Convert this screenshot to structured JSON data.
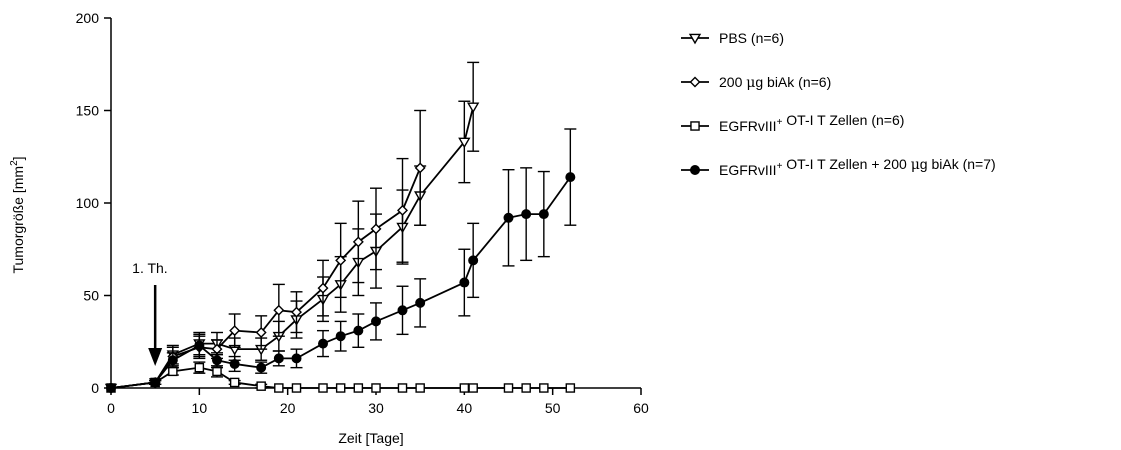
{
  "chart_data": {
    "type": "line",
    "title": "",
    "xlabel": "Zeit [Tage]",
    "ylabel": "Tumorgröße [mm",
    "ylabel_sup": "2",
    "ylabel_close": "]",
    "xlim": [
      0,
      60
    ],
    "ylim": [
      0,
      200
    ],
    "xticks": [
      0,
      10,
      20,
      30,
      40,
      50,
      60
    ],
    "yticks": [
      0,
      50,
      100,
      150,
      200
    ],
    "grid": false,
    "legend_position": "right",
    "annotation": {
      "text": "1. Th.",
      "x": 5
    },
    "series": [
      {
        "name": "PBS (n=6)",
        "label_parts": [
          {
            "t": "PBS (n=6)"
          }
        ],
        "marker": "triangle-down-open",
        "color": "#000000",
        "x": [
          0,
          5,
          7,
          10,
          12,
          14,
          17,
          19,
          21,
          24,
          26,
          28,
          30,
          33,
          35,
          40,
          41
        ],
        "y": [
          0,
          3,
          18,
          24,
          24,
          21,
          21,
          28,
          37,
          48,
          56,
          68,
          74,
          87,
          104,
          133,
          152
        ],
        "err": [
          0,
          1,
          5,
          6,
          6,
          6,
          6,
          8,
          10,
          12,
          15,
          18,
          20,
          20,
          16,
          22,
          24
        ]
      },
      {
        "name": "200 μg biAk (n=6)",
        "label_parts": [
          {
            "t": "200 "
          },
          {
            "t": "μ",
            "greek": true
          },
          {
            "t": "g biAk (n=6)"
          }
        ],
        "marker": "diamond-open",
        "color": "#000000",
        "x": [
          0,
          5,
          7,
          10,
          12,
          14,
          17,
          19,
          21,
          24,
          26,
          28,
          30,
          33,
          35
        ],
        "y": [
          0,
          3,
          17,
          22,
          21,
          31,
          30,
          42,
          41,
          54,
          69,
          79,
          86,
          96,
          119
        ],
        "err": [
          0,
          1,
          5,
          6,
          5,
          9,
          9,
          14,
          11,
          15,
          20,
          22,
          22,
          28,
          31
        ]
      },
      {
        "name": "EGFRvIII+ OT-I T Zellen (n=6)",
        "label_parts": [
          {
            "t": "EGFRvIII"
          },
          {
            "t": "+",
            "sup": true
          },
          {
            "t": " OT-I T Zellen (n=6)"
          }
        ],
        "marker": "square-open",
        "color": "#000000",
        "x": [
          0,
          5,
          7,
          10,
          12,
          14,
          17,
          19,
          21,
          24,
          26,
          28,
          30,
          33,
          35,
          40,
          41,
          45,
          47,
          49,
          52
        ],
        "y": [
          0,
          3,
          9,
          11,
          9,
          3,
          1,
          0,
          0,
          0,
          0,
          0,
          0,
          0,
          0,
          0,
          0,
          0,
          0,
          0,
          0
        ],
        "err": [
          0,
          1,
          2,
          3,
          3,
          1,
          1,
          0,
          0,
          0,
          0,
          0,
          0,
          0,
          0,
          0,
          0,
          0,
          0,
          0,
          0
        ]
      },
      {
        "name": "EGFRvIII+ OT-I T Zellen + 200 μg biAk (n=7)",
        "label_parts": [
          {
            "t": "EGFRvIII"
          },
          {
            "t": "+",
            "sup": true
          },
          {
            "t": " OT-I T Zellen + 200 "
          },
          {
            "t": "μ",
            "greek": true
          },
          {
            "t": "g biAk (n=7)"
          }
        ],
        "marker": "circle-filled",
        "color": "#000000",
        "x": [
          0,
          5,
          7,
          10,
          12,
          14,
          17,
          19,
          21,
          24,
          26,
          28,
          30,
          33,
          35,
          40,
          41,
          45,
          47,
          49,
          52
        ],
        "y": [
          0,
          3,
          15,
          23,
          15,
          13,
          11,
          16,
          16,
          24,
          28,
          31,
          36,
          42,
          46,
          57,
          69,
          92,
          94,
          94,
          114
        ],
        "err": [
          0,
          1,
          4,
          6,
          4,
          4,
          3,
          4,
          5,
          7,
          8,
          9,
          10,
          13,
          13,
          18,
          20,
          26,
          25,
          23,
          26
        ]
      }
    ]
  }
}
